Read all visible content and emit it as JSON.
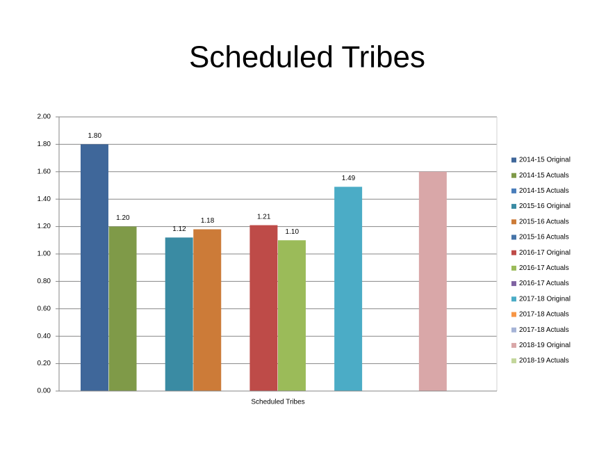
{
  "chart_data": {
    "type": "bar",
    "title": "Scheduled Tribes",
    "categories": [
      "Scheduled Tribes"
    ],
    "series": [
      {
        "name": "2014-15 Original",
        "color": "#3f679a",
        "values": [
          1.8
        ],
        "value_labels": [
          "1.80"
        ]
      },
      {
        "name": "2014-15 Actuals",
        "color": "#7f9a48",
        "values": [
          1.2
        ],
        "value_labels": [
          "1.20"
        ]
      },
      {
        "name": "2014-15 Actuals",
        "color": "#4a7ebb",
        "values": [
          null
        ],
        "value_labels": [
          null
        ]
      },
      {
        "name": "2015-16 Original",
        "color": "#3a8ba3",
        "values": [
          1.12
        ],
        "value_labels": [
          "1.12"
        ]
      },
      {
        "name": "2015-16 Actuals",
        "color": "#cc7b38",
        "values": [
          1.18
        ],
        "value_labels": [
          "1.18"
        ]
      },
      {
        "name": "2015-16 Actuals",
        "color": "#4674a8",
        "values": [
          null
        ],
        "value_labels": [
          null
        ]
      },
      {
        "name": "2016-17 Original",
        "color": "#be4b48",
        "values": [
          1.21
        ],
        "value_labels": [
          "1.21"
        ]
      },
      {
        "name": "2016-17 Actuals",
        "color": "#9bbb59",
        "values": [
          1.1
        ],
        "value_labels": [
          "1.10"
        ]
      },
      {
        "name": "2016-17 Actuals",
        "color": "#7f63a2",
        "values": [
          null
        ],
        "value_labels": [
          null
        ]
      },
      {
        "name": "2017-18 Original",
        "color": "#4bacc6",
        "values": [
          1.49
        ],
        "value_labels": [
          "1.49"
        ]
      },
      {
        "name": "2017-18 Actuals",
        "color": "#f79646",
        "values": [
          null
        ],
        "value_labels": [
          null
        ]
      },
      {
        "name": "2017-18 Actuals",
        "color": "#a5b3d6",
        "values": [
          null
        ],
        "value_labels": [
          null
        ]
      },
      {
        "name": "2018-19 Original",
        "color": "#d9a7a8",
        "values": [
          1.6
        ],
        "value_labels": [
          null
        ]
      },
      {
        "name": "2018-19 Actuals",
        "color": "#c3d69b",
        "values": [
          null
        ],
        "value_labels": [
          null
        ]
      }
    ],
    "ylim": [
      0,
      2
    ],
    "yticks": [
      {
        "value": 0,
        "label": "0.00"
      },
      {
        "value": 0.2,
        "label": "0.20"
      },
      {
        "value": 0.4,
        "label": "0.40"
      },
      {
        "value": 0.6,
        "label": "0.60"
      },
      {
        "value": 0.8,
        "label": "0.80"
      },
      {
        "value": 1,
        "label": "1.00"
      },
      {
        "value": 1.2,
        "label": "1.20"
      },
      {
        "value": 1.4,
        "label": "1.40"
      },
      {
        "value": 1.6,
        "label": "1.60"
      },
      {
        "value": 1.8,
        "label": "1.80"
      },
      {
        "value": 2,
        "label": "2.00"
      }
    ],
    "grid": true,
    "legend": "right"
  }
}
